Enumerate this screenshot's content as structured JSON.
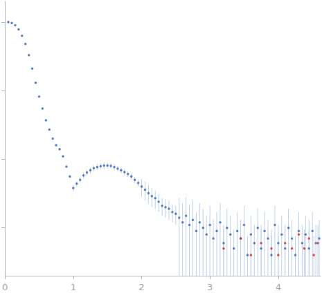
{
  "chart_data": {
    "type": "scatter",
    "xlim": [
      0,
      4.62
    ],
    "xticks": [
      0,
      1,
      2,
      3,
      4
    ],
    "ylim": [
      0.0002,
      2
    ],
    "yticks": [
      0.001,
      0.01,
      0.1,
      1
    ],
    "log": "y",
    "grid": false,
    "tick_labels": "x",
    "series": [
      {
        "color": "#3a66b8",
        "marker": "circle",
        "x": [
          0.05,
          0.1,
          0.15,
          0.2,
          0.25,
          0.3,
          0.35,
          0.4,
          0.45,
          0.5,
          0.55,
          0.6,
          0.65,
          0.7,
          0.75,
          0.8,
          0.85,
          0.9,
          0.95,
          1.0,
          1.05,
          1.1,
          1.15,
          1.2,
          1.25,
          1.3,
          1.35,
          1.4,
          1.45,
          1.5,
          1.55,
          1.6,
          1.65,
          1.7,
          1.75,
          1.8,
          1.85,
          1.9,
          1.95,
          2.0,
          2.05,
          2.1,
          2.15,
          2.2,
          2.25,
          2.3,
          2.35,
          2.4,
          2.45,
          2.5,
          2.55,
          2.6,
          2.65,
          2.7,
          2.75,
          2.8,
          2.85,
          2.9,
          2.95,
          3.0,
          3.05,
          3.1,
          3.15,
          3.2,
          3.25,
          3.3,
          3.35,
          3.4,
          3.45,
          3.5,
          3.55,
          3.6,
          3.65,
          3.7,
          3.75,
          3.8,
          3.85,
          3.9,
          3.95,
          4.0,
          4.05,
          4.1,
          4.15,
          4.2,
          4.25,
          4.3,
          4.35,
          4.4,
          4.45,
          4.5,
          4.55,
          4.6
        ],
        "values": [
          1.0,
          0.97,
          0.9,
          0.78,
          0.63,
          0.48,
          0.33,
          0.21,
          0.13,
          0.082,
          0.055,
          0.037,
          0.027,
          0.02,
          0.016,
          0.014,
          0.011,
          0.0078,
          0.0056,
          0.0038,
          0.0044,
          0.005,
          0.0058,
          0.0064,
          0.0069,
          0.0074,
          0.0077,
          0.0079,
          0.0081,
          0.0081,
          0.008,
          0.0077,
          0.0073,
          0.0069,
          0.0065,
          0.0061,
          0.0056,
          0.005,
          0.0045,
          0.004,
          0.0036,
          0.0032,
          0.0029,
          0.0027,
          0.0024,
          0.0021,
          0.002,
          0.0019,
          0.0017,
          0.0016,
          0.0014,
          0.0012,
          0.0015,
          0.0011,
          0.0013,
          0.0009,
          0.0012,
          0.001,
          0.0008,
          0.0011,
          0.0007,
          0.0009,
          0.0012,
          0.0006,
          0.001,
          0.0008,
          0.0005,
          0.0009,
          0.0007,
          0.0011,
          0.0004,
          0.0008,
          0.0006,
          0.001,
          0.0005,
          0.0009,
          0.0007,
          0.0004,
          0.0011,
          0.0006,
          0.0008,
          0.0005,
          0.001,
          0.0007,
          0.0004,
          0.0009,
          0.0006,
          0.0008,
          0.0005,
          0.0009,
          0.0006,
          0.0007
        ],
        "error": [
          0.02,
          0.019,
          0.018,
          0.016,
          0.013,
          0.01,
          0.007,
          0.004,
          0.003,
          0.002,
          0.001,
          0.0007,
          0.0005,
          0.0004,
          0.0003,
          0.0003,
          0.0002,
          0.0002,
          0.0001,
          0.0004,
          0.0004,
          0.0005,
          0.0006,
          0.0006,
          0.0007,
          0.0007,
          0.0008,
          0.0008,
          0.0008,
          0.0008,
          0.0008,
          0.0008,
          0.0007,
          0.0007,
          0.0007,
          0.0006,
          0.0006,
          0.0005,
          0.0005,
          0.0012,
          0.0011,
          0.001,
          0.0009,
          0.0008,
          0.0007,
          0.0006,
          0.0006,
          0.0006,
          0.0005,
          0.0005,
          0.0013,
          0.0011,
          0.0013,
          0.001,
          0.0012,
          0.0008,
          0.0011,
          0.0009,
          0.0007,
          0.001,
          0.0006,
          0.0008,
          0.0011,
          0.0005,
          0.0009,
          0.0007,
          0.00045,
          0.0008,
          0.0006,
          0.001,
          0.00036,
          0.0007,
          0.0005,
          0.0009,
          0.00045,
          0.0008,
          0.0006,
          0.00036,
          0.001,
          0.0005,
          0.0007,
          0.00045,
          0.0009,
          0.0006,
          0.00036,
          0.0008,
          0.0005,
          0.0007,
          0.00045,
          0.0008,
          0.0005,
          0.0006
        ]
      },
      {
        "color": "#d62728",
        "marker": "circle",
        "x": [
          3.2,
          3.45,
          3.6,
          3.75,
          3.9,
          4.0,
          4.1,
          4.2,
          4.3,
          4.38,
          4.45,
          4.52,
          4.58
        ],
        "values": [
          0.0005,
          0.0007,
          0.0004,
          0.0006,
          0.0005,
          0.0004,
          0.0006,
          0.0005,
          0.0008,
          0.0005,
          0.0007,
          0.0004,
          0.0006
        ],
        "error": [
          0.00045,
          0.0006,
          0.00036,
          0.0005,
          0.00045,
          0.00036,
          0.0005,
          0.00045,
          0.0007,
          0.00045,
          0.0006,
          0.00036,
          0.0005
        ]
      }
    ]
  }
}
